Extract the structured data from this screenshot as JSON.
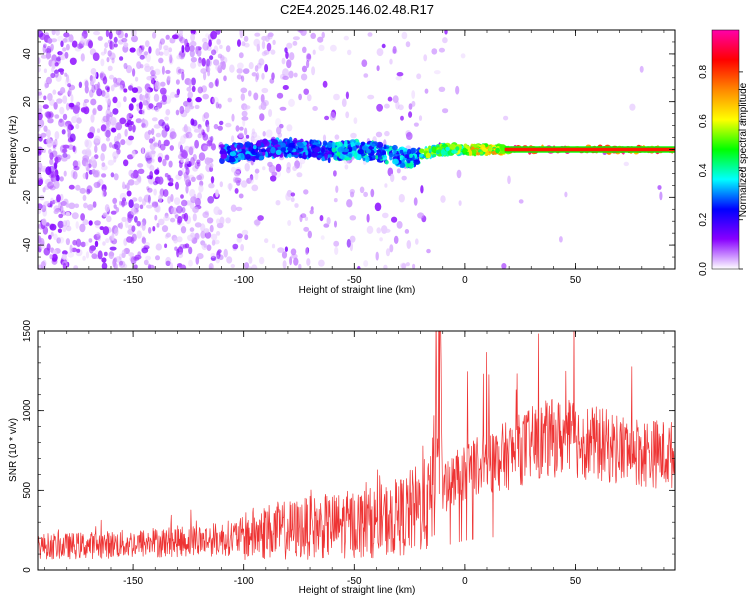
{
  "chart_data": [
    {
      "type": "heatmap",
      "title": "C2E4.2025.146.02.48.R17",
      "xlabel": "Height of straight line (km)",
      "ylabel": "Frequency (Hz)",
      "xlim": [
        -193,
        95
      ],
      "ylim": [
        -50,
        50
      ],
      "xticks": [
        -150,
        -100,
        -50,
        0,
        50
      ],
      "xtick_labels": [
        "-150",
        "-100",
        "-50",
        "0",
        "50"
      ],
      "yticks": [
        -40,
        -20,
        0,
        20,
        40
      ],
      "ytick_labels": [
        "-40",
        "-20",
        "0",
        "20",
        "40"
      ],
      "colorbar": {
        "label": "Normalized spectral amplitude",
        "range": [
          0,
          0.97
        ],
        "ticks": [
          0.0,
          0.2,
          0.4,
          0.6,
          0.8
        ],
        "tick_labels": [
          "0.0",
          "0.2",
          "0.4",
          "0.6",
          "0.8"
        ],
        "colormap": [
          "#ffffff",
          "#8800ff",
          "#0000ff",
          "#00ffff",
          "#00ff00",
          "#ffff00",
          "#ff8800",
          "#ff0000",
          "#ff00aa"
        ]
      },
      "trace": {
        "x": [
          -110,
          -100,
          -90,
          -80,
          -70,
          -60,
          -50,
          -40,
          -30,
          -25,
          -20,
          -10,
          0,
          10,
          20,
          50,
          95
        ],
        "y": [
          -2,
          -1,
          0,
          1,
          0,
          -1,
          0,
          -1,
          -3,
          -4,
          -2,
          0,
          0,
          0,
          0,
          0,
          0
        ]
      },
      "grid": false
    },
    {
      "type": "line",
      "xlabel": "Height of straight line (km)",
      "ylabel": "SNR (10 * v/v)",
      "xlim": [
        -193,
        95
      ],
      "ylim": [
        0,
        1500
      ],
      "xticks": [
        -150,
        -100,
        -50,
        0,
        50
      ],
      "xtick_labels": [
        "-150",
        "-100",
        "-50",
        "0",
        "50"
      ],
      "yticks": [
        0,
        500,
        1000,
        1500
      ],
      "ytick_labels": [
        "0",
        "500",
        "1000",
        "1500"
      ],
      "color": "#ee3333",
      "series": [
        {
          "x": [
            -193,
            -180,
            -170,
            -160,
            -150,
            -140,
            -130,
            -120,
            -110,
            -100,
            -90,
            -80,
            -70,
            -60,
            -50,
            -40,
            -30,
            -25,
            -20,
            -15,
            -11,
            -10,
            -5,
            0,
            5,
            10,
            20,
            30,
            40,
            50,
            60,
            70,
            80,
            95
          ],
          "y": [
            150,
            150,
            155,
            160,
            165,
            170,
            180,
            185,
            195,
            215,
            240,
            250,
            265,
            275,
            290,
            300,
            330,
            360,
            390,
            420,
            1500,
            500,
            560,
            620,
            650,
            680,
            720,
            790,
            830,
            820,
            790,
            760,
            740,
            720
          ]
        }
      ],
      "grid": false
    }
  ]
}
